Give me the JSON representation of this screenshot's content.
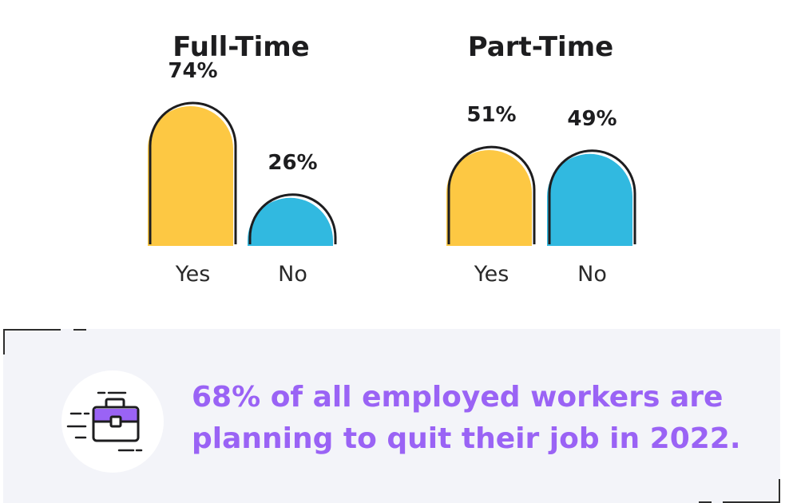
{
  "chart_data": {
    "type": "bar",
    "bar_shape": "rounded-arch",
    "groups": [
      {
        "title": "Full-Time",
        "bars": [
          {
            "category": "Yes",
            "value": 74,
            "label": "74%",
            "color": "#fdc843"
          },
          {
            "category": "No",
            "value": 26,
            "label": "26%",
            "color": "#31b9e0"
          }
        ]
      },
      {
        "title": "Part-Time",
        "bars": [
          {
            "category": "Yes",
            "value": 51,
            "label": "51%",
            "color": "#fdc843"
          },
          {
            "category": "No",
            "value": 49,
            "label": "49%",
            "color": "#31b9e0"
          }
        ]
      }
    ],
    "unit": "%",
    "ylim": [
      0,
      100
    ],
    "grid": false,
    "legend": "none"
  },
  "callout": {
    "line1": "68% of all employed workers are",
    "line2": "planning to quit their job in 2022.",
    "icon": "briefcase-icon",
    "text_color": "#9a63f5"
  },
  "colors": {
    "yes": "#fdc843",
    "no": "#31b9e0",
    "outline": "#1d1d1f",
    "accent": "#9a63f5",
    "callout_bg": "#f3f4f9"
  }
}
